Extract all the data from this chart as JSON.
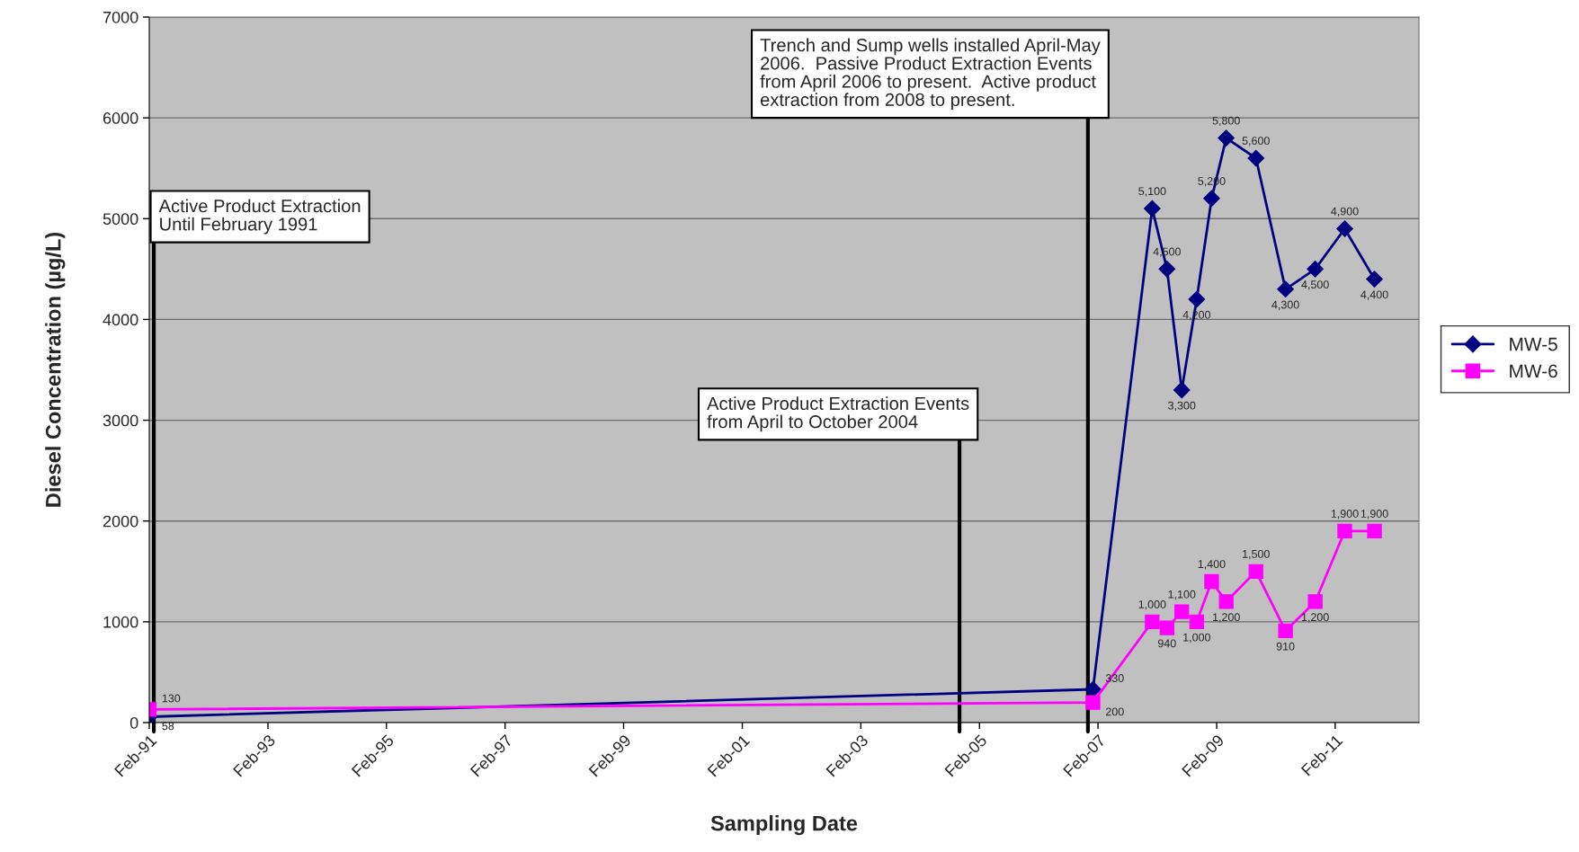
{
  "chart_data": {
    "type": "line",
    "xlabel": "Sampling Date",
    "ylabel": "Diesel Concentration (µg/L)",
    "x": [
      "1991-02",
      "2007-01",
      "2008-01",
      "2008-04",
      "2008-07",
      "2008-10",
      "2009-01",
      "2009-04",
      "2009-10",
      "2010-04",
      "2010-10",
      "2011-04",
      "2011-10"
    ],
    "series": [
      {
        "name": "MW-5",
        "color": "#000080",
        "marker": "diamond",
        "values": [
          58,
          330,
          5100,
          4500,
          3300,
          4200,
          5200,
          5800,
          5600,
          4300,
          4500,
          4900,
          4400
        ],
        "value_labels": [
          "58",
          "330",
          "5,100",
          "4,500",
          "3,300",
          "4,200",
          "5,200",
          "5,800",
          "5,600",
          "4,300",
          "4,500",
          "4,900",
          "4,400"
        ]
      },
      {
        "name": "MW-6",
        "color": "#ff00ff",
        "marker": "square",
        "values": [
          130,
          200,
          1000,
          940,
          1100,
          1000,
          1400,
          1200,
          1500,
          910,
          1200,
          1900,
          1900
        ],
        "value_labels": [
          "130",
          "200",
          "1,000",
          "940",
          "1,100",
          "1,000",
          "1,400",
          "1,200",
          "1,500",
          "910",
          "1,200",
          "1,900",
          "1,900"
        ]
      }
    ],
    "xlim": [
      "1991-02",
      "2012-07"
    ],
    "xticks": [
      {
        "value": "1991-02",
        "label": "Feb-91"
      },
      {
        "value": "1993-02",
        "label": "Feb-93"
      },
      {
        "value": "1995-02",
        "label": "Feb-95"
      },
      {
        "value": "1997-02",
        "label": "Feb-97"
      },
      {
        "value": "1999-02",
        "label": "Feb-99"
      },
      {
        "value": "2001-02",
        "label": "Feb-01"
      },
      {
        "value": "2003-02",
        "label": "Feb-03"
      },
      {
        "value": "2005-02",
        "label": "Feb-05"
      },
      {
        "value": "2007-02",
        "label": "Feb-07"
      },
      {
        "value": "2009-02",
        "label": "Feb-09"
      },
      {
        "value": "2011-02",
        "label": "Feb-11"
      }
    ],
    "ylim": [
      0,
      7000
    ],
    "yticks": [
      0,
      1000,
      2000,
      3000,
      4000,
      5000,
      6000,
      7000
    ],
    "ref_lines": [
      {
        "axis": "x",
        "value": "1991-03",
        "label": "Active Product Extraction\nUntil February 1991",
        "color": "#000000"
      },
      {
        "axis": "x",
        "value": "2004-10",
        "label": "Active Product Extraction Events\nfrom April to October 2004",
        "color": "#000000"
      },
      {
        "axis": "x",
        "value": "2006-12",
        "label": "Trench and Sump wells installed April-May\n2006.  Passive Product Extraction Events\nfrom April 2006 to present.  Active product\nextraction from 2008 to present.",
        "color": "#000000"
      }
    ],
    "grid": "y",
    "legend": "right"
  }
}
